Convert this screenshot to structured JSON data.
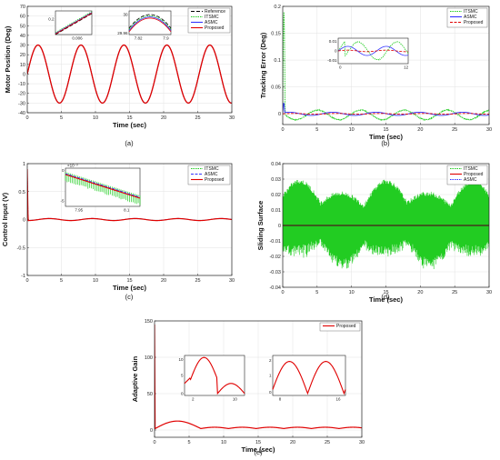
{
  "chart_data": [
    {
      "id": "a",
      "type": "line",
      "caption": "(a)",
      "xlabel": "Time (sec)",
      "ylabel": "Motor Position (Deg)",
      "xlim": [
        0,
        30
      ],
      "ylim": [
        -40,
        70
      ],
      "xticks": [
        0,
        5,
        10,
        15,
        20,
        25,
        30
      ],
      "yticks": [
        -40,
        -30,
        -20,
        -10,
        0,
        10,
        20,
        30,
        40,
        50,
        60,
        70
      ],
      "grid": true,
      "legend_position": "top-right",
      "series": [
        {
          "name": "Reference",
          "color": "#000000",
          "dash": "4,2",
          "amplitude": 30,
          "period": 6.3,
          "phase_shift": 0
        },
        {
          "name": "ITSMC",
          "color": "#22cc22",
          "dash": "1.5,1",
          "amplitude": 30,
          "period": 6.3,
          "phase_shift": 0
        },
        {
          "name": "ASMC",
          "color": "#3333ff",
          "dash": "",
          "amplitude": 30,
          "period": 6.3,
          "phase_shift": 0
        },
        {
          "name": "Proposed",
          "color": "#e00000",
          "dash": "",
          "amplitude": 30,
          "period": 6.3,
          "phase_shift": 0
        }
      ],
      "insets": [
        {
          "id": "a1",
          "xtick_labels": [
            "0.006"
          ],
          "ytick_labels": [
            "0.2"
          ]
        },
        {
          "id": "a2",
          "xtick_labels": [
            "7.82",
            "7.9"
          ],
          "ytick_labels": [
            "30",
            "29.96"
          ]
        }
      ]
    },
    {
      "id": "b",
      "type": "line",
      "caption": "(b)",
      "xlabel": "Time (sec)",
      "ylabel": "Tracking Error (Deg)",
      "xlim": [
        0,
        30
      ],
      "ylim": [
        -0.02,
        0.2
      ],
      "xticks": [
        0,
        5,
        10,
        15,
        20,
        25,
        30
      ],
      "yticks": [
        0,
        0.05,
        0.1,
        0.15,
        0.2
      ],
      "grid": true,
      "legend_position": "top-right",
      "series": [
        {
          "name": "ITSMC",
          "color": "#22cc22",
          "dash": "1.5,1"
        },
        {
          "name": "ASMC",
          "color": "#3333ff",
          "dash": ""
        },
        {
          "name": "Proposed",
          "color": "#e00000",
          "dash": "3,1.5"
        }
      ],
      "insets": [
        {
          "id": "b1",
          "xtick_labels": [
            "0",
            "12"
          ],
          "ytick_labels": [
            "0.01",
            "0",
            "-0.01"
          ]
        }
      ]
    },
    {
      "id": "c",
      "type": "line",
      "caption": "(c)",
      "xlabel": "Time (sec)",
      "ylabel": "Control Input (V)",
      "xlim": [
        0,
        30
      ],
      "ylim": [
        -1,
        1
      ],
      "xticks": [
        0,
        5,
        10,
        15,
        20,
        25,
        30
      ],
      "yticks": [
        -1,
        -0.5,
        0,
        0.5,
        1
      ],
      "grid": true,
      "legend_position": "top-right",
      "series": [
        {
          "name": "ITSMC",
          "color": "#22cc22",
          "dash": "1.5,1"
        },
        {
          "name": "ASMC",
          "color": "#3333ff",
          "dash": "3,1.5"
        },
        {
          "name": "Proposed",
          "color": "#e00000",
          "dash": ""
        }
      ],
      "insets": [
        {
          "id": "c1",
          "xtick_labels": [
            "7.95",
            "8.1"
          ],
          "ytick_labels": [
            "0",
            "-5"
          ],
          "exponent_label": "×10⁻³"
        }
      ]
    },
    {
      "id": "d",
      "type": "line",
      "caption": "(d)",
      "xlabel": "Time (sec)",
      "ylabel": "Sliding Surface",
      "xlim": [
        0,
        30
      ],
      "ylim": [
        -0.04,
        0.04
      ],
      "xticks": [
        0,
        5,
        10,
        15,
        20,
        25,
        30
      ],
      "yticks": [
        -0.04,
        -0.03,
        -0.02,
        -0.01,
        0,
        0.01,
        0.02,
        0.03,
        0.04
      ],
      "grid": true,
      "legend_position": "top-right",
      "series": [
        {
          "name": "ITSMC",
          "color": "#22cc22",
          "dash": "1.5,1"
        },
        {
          "name": "Proposed",
          "color": "#e00000",
          "dash": ""
        },
        {
          "name": "ASMC",
          "color": "#3333ff",
          "dash": "1.5,1"
        }
      ]
    },
    {
      "id": "e",
      "type": "line",
      "caption": "(e)",
      "xlabel": "Time (sec)",
      "ylabel": "Adaptive Gain",
      "xlim": [
        0,
        30
      ],
      "ylim": [
        -10,
        150
      ],
      "xticks": [
        0,
        5,
        10,
        15,
        20,
        25,
        30
      ],
      "yticks": [
        0,
        50,
        100,
        150
      ],
      "grid": true,
      "legend_position": "top-right",
      "series": [
        {
          "name": "Proposed",
          "color": "#e00000",
          "dash": ""
        }
      ],
      "insets": [
        {
          "id": "e1",
          "xtick_labels": [
            "2",
            "10"
          ],
          "ytick_labels": [
            "10",
            "5",
            "0"
          ]
        },
        {
          "id": "e2",
          "xtick_labels": [
            "8",
            "16"
          ],
          "ytick_labels": [
            "2",
            "1",
            "0"
          ]
        }
      ]
    }
  ]
}
